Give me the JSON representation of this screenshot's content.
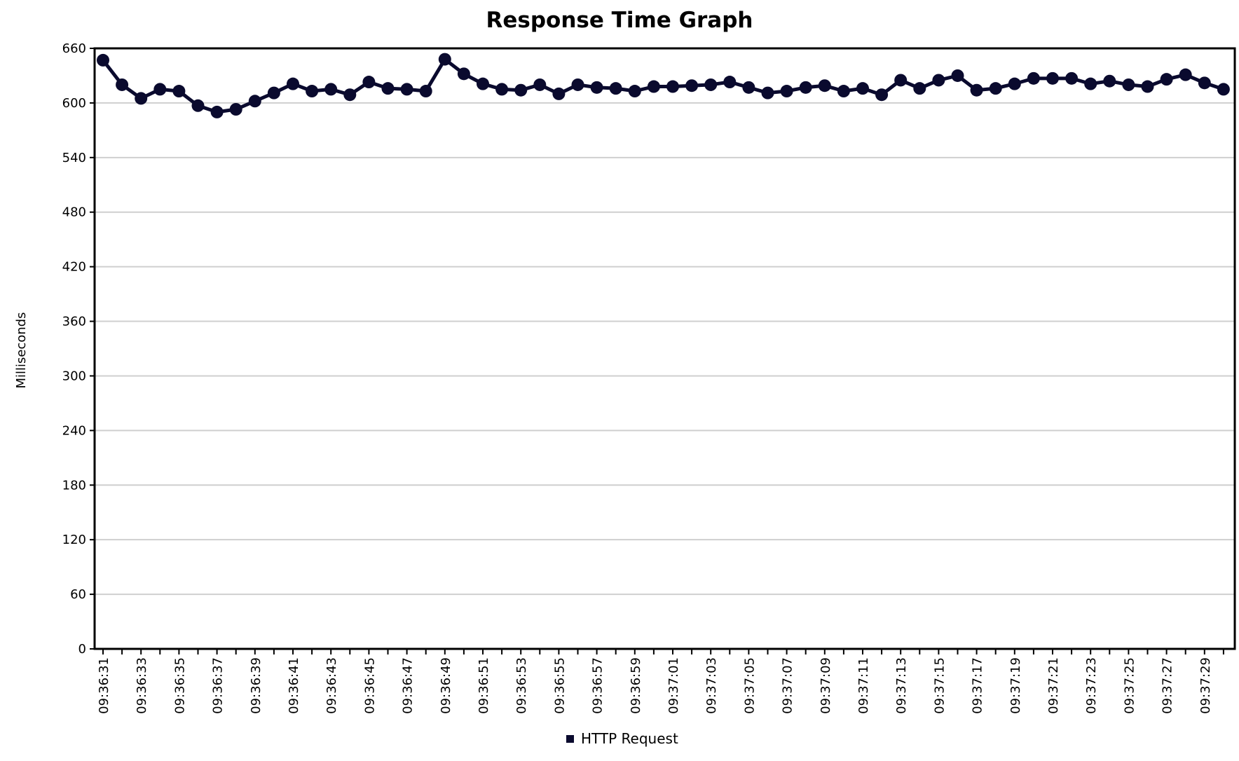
{
  "chart_data": {
    "type": "line",
    "title": "Response Time Graph",
    "xlabel": "",
    "ylabel": "Milliseconds",
    "ylim": [
      0,
      660
    ],
    "yticks": [
      0,
      60,
      120,
      180,
      240,
      300,
      360,
      420,
      480,
      540,
      600,
      660
    ],
    "grid": true,
    "legend_position": "bottom",
    "series_color": "#0a0a2e",
    "grid_color": "#cfcfcf",
    "x": [
      "09:36:31",
      "09:36:32",
      "09:36:33",
      "09:36:34",
      "09:36:35",
      "09:36:36",
      "09:36:37",
      "09:36:38",
      "09:36:39",
      "09:36:40",
      "09:36:41",
      "09:36:42",
      "09:36:43",
      "09:36:44",
      "09:36:45",
      "09:36:46",
      "09:36:47",
      "09:36:48",
      "09:36:49",
      "09:36:50",
      "09:36:51",
      "09:36:52",
      "09:36:53",
      "09:36:54",
      "09:36:55",
      "09:36:56",
      "09:36:57",
      "09:36:58",
      "09:36:59",
      "09:37:00",
      "09:37:01",
      "09:37:02",
      "09:37:03",
      "09:37:04",
      "09:37:05",
      "09:37:06",
      "09:37:07",
      "09:37:08",
      "09:37:09",
      "09:37:10",
      "09:37:11",
      "09:37:12",
      "09:37:13",
      "09:37:14",
      "09:37:15",
      "09:37:16",
      "09:37:17",
      "09:37:18",
      "09:37:19",
      "09:37:20",
      "09:37:21",
      "09:37:22",
      "09:37:23",
      "09:37:24",
      "09:37:25",
      "09:37:26",
      "09:37:27",
      "09:37:28",
      "09:37:29",
      "09:37:30"
    ],
    "x_tick_labels": [
      "09:36:31",
      "09:36:33",
      "09:36:35",
      "09:36:37",
      "09:36:39",
      "09:36:41",
      "09:36:43",
      "09:36:45",
      "09:36:47",
      "09:36:49",
      "09:36:51",
      "09:36:53",
      "09:36:55",
      "09:36:57",
      "09:36:59",
      "09:37:01",
      "09:37:03",
      "09:37:05",
      "09:37:07",
      "09:37:09",
      "09:37:11",
      "09:37:13",
      "09:37:15",
      "09:37:17",
      "09:37:19",
      "09:37:21",
      "09:37:23",
      "09:37:25",
      "09:37:27",
      "09:37:29"
    ],
    "series": [
      {
        "name": "HTTP Request",
        "values": [
          647,
          620,
          605,
          615,
          613,
          597,
          590,
          593,
          602,
          611,
          621,
          613,
          615,
          609,
          623,
          616,
          615,
          613,
          648,
          632,
          621,
          615,
          614,
          620,
          610,
          620,
          617,
          616,
          613,
          618,
          618,
          619,
          620,
          623,
          617,
          611,
          613,
          617,
          619,
          613,
          616,
          609,
          625,
          616,
          625,
          630,
          614,
          616,
          621,
          627,
          627,
          627,
          621,
          624,
          620,
          618,
          626,
          631,
          622,
          615
        ]
      }
    ]
  }
}
